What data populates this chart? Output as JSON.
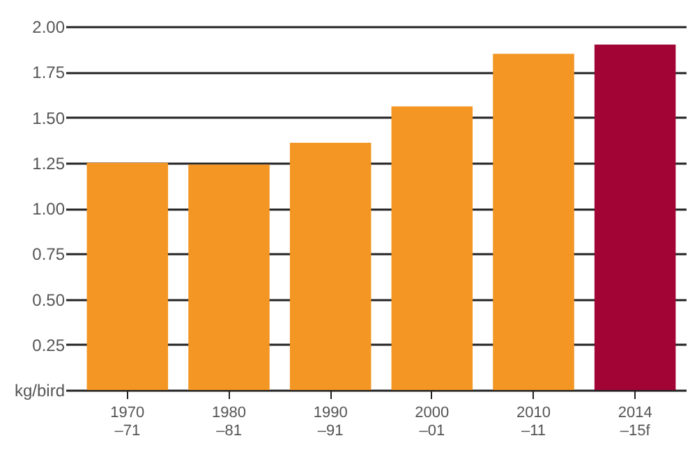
{
  "chart_data": {
    "type": "bar",
    "categories": [
      "1970\n–71",
      "1980\n–81",
      "1990\n–91",
      "2000\n–01",
      "2010\n–11",
      "2014\n–15f"
    ],
    "values": [
      1.25,
      1.24,
      1.36,
      1.56,
      1.85,
      1.9
    ],
    "colors": [
      "#f39623",
      "#f39623",
      "#f39623",
      "#f39623",
      "#f39623",
      "#a20535"
    ],
    "ylim": [
      0,
      2
    ],
    "yticks": [
      {
        "value": 0,
        "label": "kg/bird"
      },
      {
        "value": 0.25,
        "label": "0.25"
      },
      {
        "value": 0.5,
        "label": "0.50"
      },
      {
        "value": 0.75,
        "label": "0.75"
      },
      {
        "value": 1,
        "label": "1.00"
      },
      {
        "value": 1.25,
        "label": "1.25"
      },
      {
        "value": 1.5,
        "label": "1.50"
      },
      {
        "value": 1.75,
        "label": "1.75"
      },
      {
        "value": 2,
        "label": "2.00"
      }
    ],
    "grid": "y"
  }
}
